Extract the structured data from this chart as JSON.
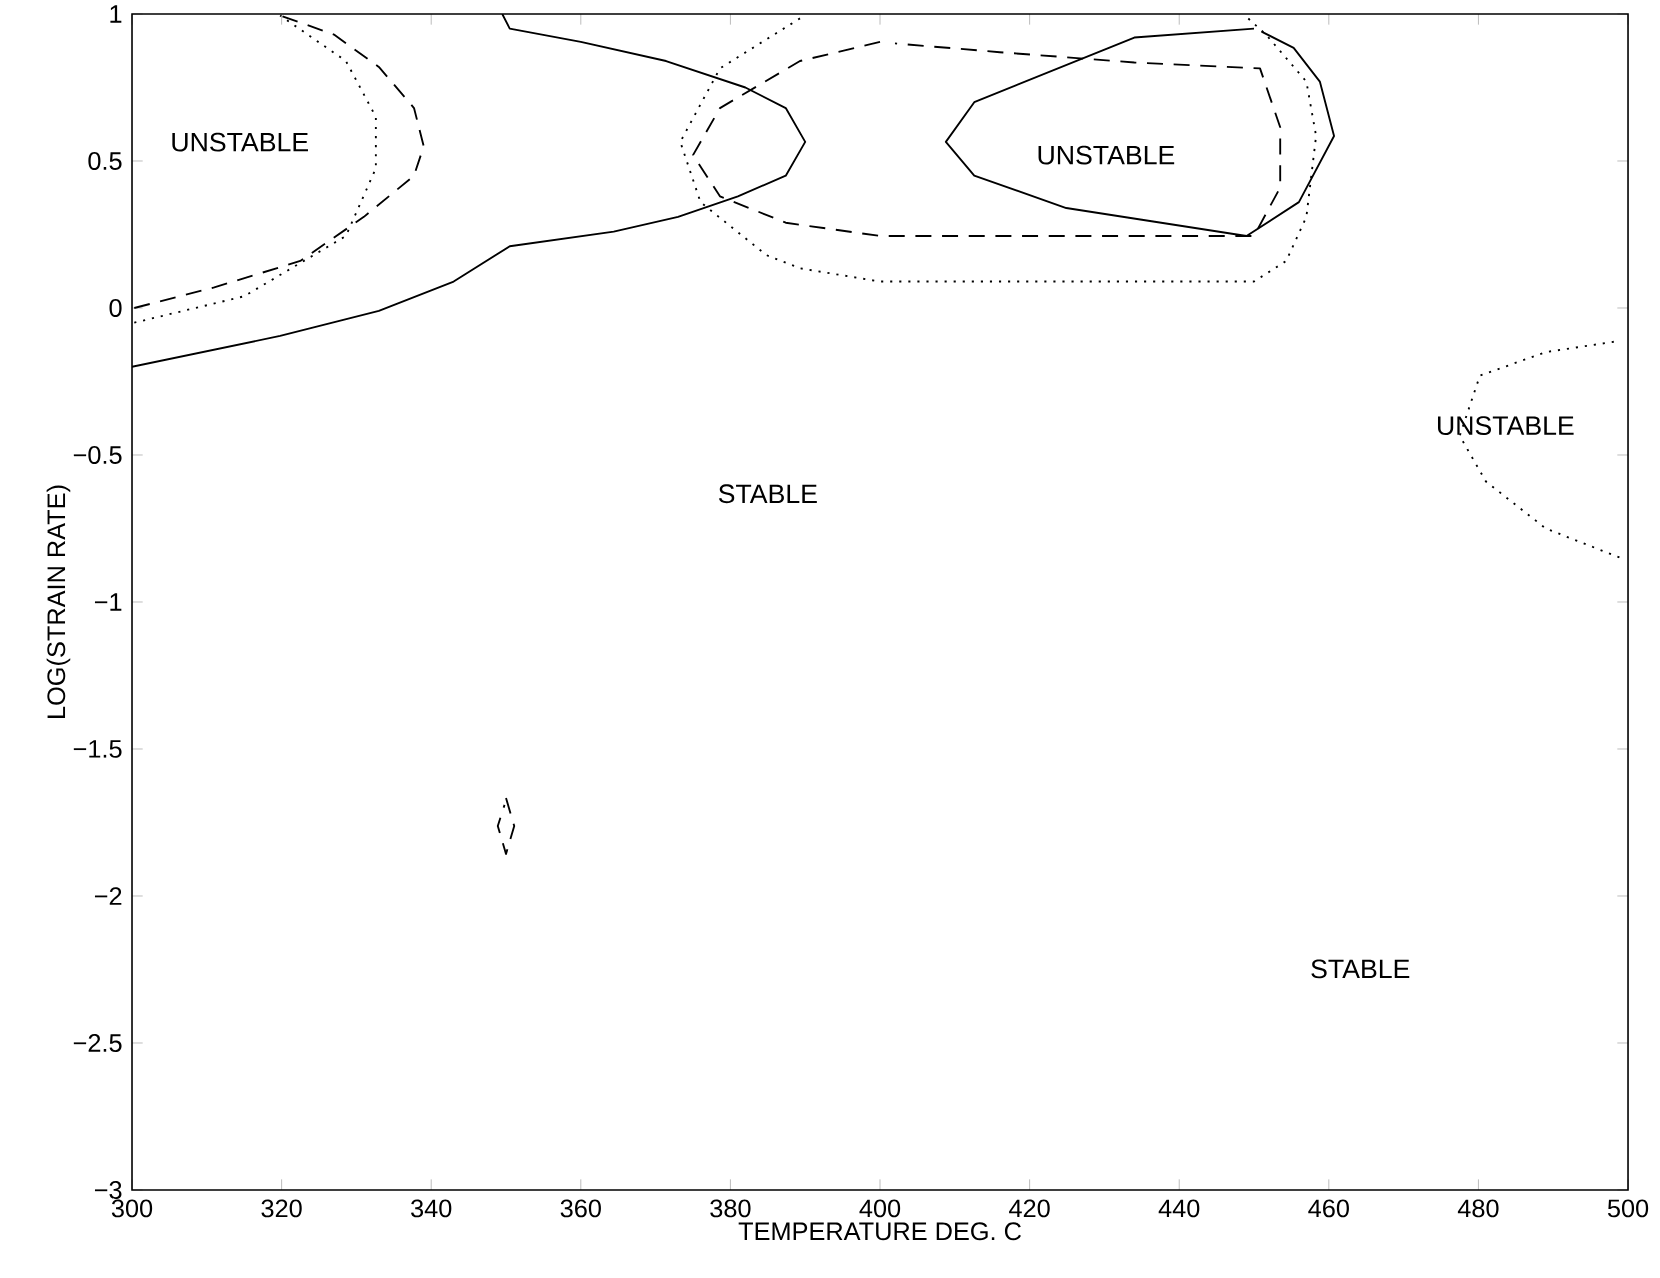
{
  "chart_data": {
    "type": "line",
    "xlabel": "TEMPERATURE DEG. C",
    "ylabel": "LOG(STRAIN RATE)",
    "xlim": [
      300,
      500
    ],
    "ylim": [
      -3,
      1
    ],
    "xticks": [
      300,
      320,
      340,
      360,
      380,
      400,
      420,
      440,
      460,
      480,
      500
    ],
    "yticks": [
      {
        "value": -3,
        "label": "−3"
      },
      {
        "value": -2.5,
        "label": "−2.5"
      },
      {
        "value": -2,
        "label": "−2"
      },
      {
        "value": -1.5,
        "label": "−1.5"
      },
      {
        "value": -1,
        "label": "−1"
      },
      {
        "value": -0.5,
        "label": "−0.5"
      },
      0,
      0.5,
      1
    ],
    "grid": false,
    "marker": "none",
    "series": [
      {
        "color": "#000000",
        "line_style": "solid",
        "x": [
          300,
          319.8,
          333,
          343,
          350.5,
          364.4,
          373,
          381,
          387.4,
          390,
          387.4,
          382,
          371.4,
          360,
          350.5,
          349.5
        ],
        "values": [
          -0.2,
          -0.095,
          -0.01,
          0.09,
          0.21,
          0.26,
          0.31,
          0.38,
          0.45,
          0.565,
          0.68,
          0.75,
          0.84,
          0.905,
          0.95,
          1.0
        ]
      },
      {
        "color": "#000000",
        "line_style": "dashed",
        "x": [
          300.3,
          311,
          322.5,
          331,
          337.7,
          339,
          337.7,
          333,
          327,
          319.8
        ],
        "values": [
          0.0,
          0.07,
          0.16,
          0.31,
          0.45,
          0.55,
          0.68,
          0.82,
          0.93,
          0.995
        ]
      },
      {
        "color": "#000000",
        "line_style": "dotted",
        "x": [
          300.3,
          315,
          328.6,
          332.6,
          332.6,
          328.6,
          319.8
        ],
        "values": [
          -0.05,
          0.04,
          0.245,
          0.475,
          0.65,
          0.84,
          0.995
        ]
      },
      {
        "color": "#000000",
        "line_style": "dotted",
        "x": [
          389.3,
          378.6,
          373.3,
          376,
          384.8,
          389.3,
          400,
          450,
          454.3,
          457,
          458.3,
          457,
          451.6,
          449
        ],
        "values": [
          0.985,
          0.815,
          0.565,
          0.36,
          0.18,
          0.135,
          0.09,
          0.09,
          0.16,
          0.31,
          0.585,
          0.77,
          0.93,
          0.99
        ]
      },
      {
        "color": "#000000",
        "line_style": "dashed",
        "x": [
          400,
          389.3,
          378.6,
          375,
          378.6,
          387.4,
          400,
          450,
          453.5,
          453.5,
          450.8,
          434,
          416,
          402
        ],
        "values": [
          0.905,
          0.84,
          0.68,
          0.52,
          0.38,
          0.29,
          0.245,
          0.245,
          0.41,
          0.615,
          0.815,
          0.835,
          0.87,
          0.9
        ]
      },
      {
        "color": "#000000",
        "line_style": "solid",
        "x": [
          450,
          434,
          412.6,
          408.8,
          412.6,
          424.9,
          449,
          456,
          460.7,
          458.8,
          455.3,
          451
        ],
        "values": [
          0.95,
          0.92,
          0.7,
          0.565,
          0.45,
          0.34,
          0.245,
          0.36,
          0.585,
          0.77,
          0.885,
          0.94
        ]
      },
      {
        "color": "#000000",
        "line_style": "dotted",
        "x": [
          498.1,
          489,
          480.2,
          477.5,
          481,
          489,
          499
        ],
        "values": [
          -0.115,
          -0.15,
          -0.23,
          -0.435,
          -0.59,
          -0.75,
          -0.85
        ]
      },
      {
        "color": "#000000",
        "line_style": "dashed",
        "x": [
          350,
          351.1,
          350,
          348.9,
          349.8
        ],
        "values": [
          -1.667,
          -1.762,
          -1.857,
          -1.762,
          -1.69
        ]
      }
    ],
    "annotations": [
      "UNSTABLE",
      "UNSTABLE",
      "UNSTABLE",
      "STABLE",
      "STABLE"
    ]
  }
}
